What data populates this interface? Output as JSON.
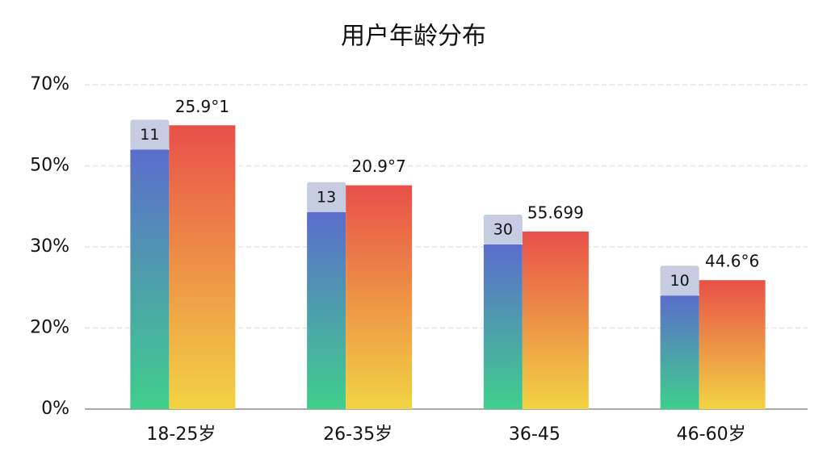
{
  "chart_data": {
    "type": "bar",
    "title": "用户年龄分布",
    "categories": [
      "18-25岁",
      "26-35岁",
      "36-45",
      "46-60岁"
    ],
    "series": [
      {
        "color": "#5b6dcc",
        "gradient": [
          "#5b6dcc",
          "#3fcf8c"
        ],
        "values": [
          54,
          38.6,
          30.6,
          24
        ],
        "annotations": [
          "11",
          "13",
          "30",
          "10"
        ]
      },
      {
        "color": "#e8504a",
        "gradient": [
          "#e8504a",
          "#f2d443"
        ],
        "values": [
          60,
          45.2,
          33.8,
          25.9
        ],
        "annotations": [
          "25.9°1",
          "20.9°7",
          "55.699",
          "44.6°6"
        ]
      }
    ],
    "ylim": [
      0,
      70
    ],
    "yticks": [
      {
        "value": 0,
        "label": "0%"
      },
      {
        "value": 20,
        "label": "20%"
      },
      {
        "value": 30,
        "label": "30%"
      },
      {
        "value": 50,
        "label": "50%"
      },
      {
        "value": 70,
        "label": "70%"
      }
    ],
    "grid": true
  }
}
